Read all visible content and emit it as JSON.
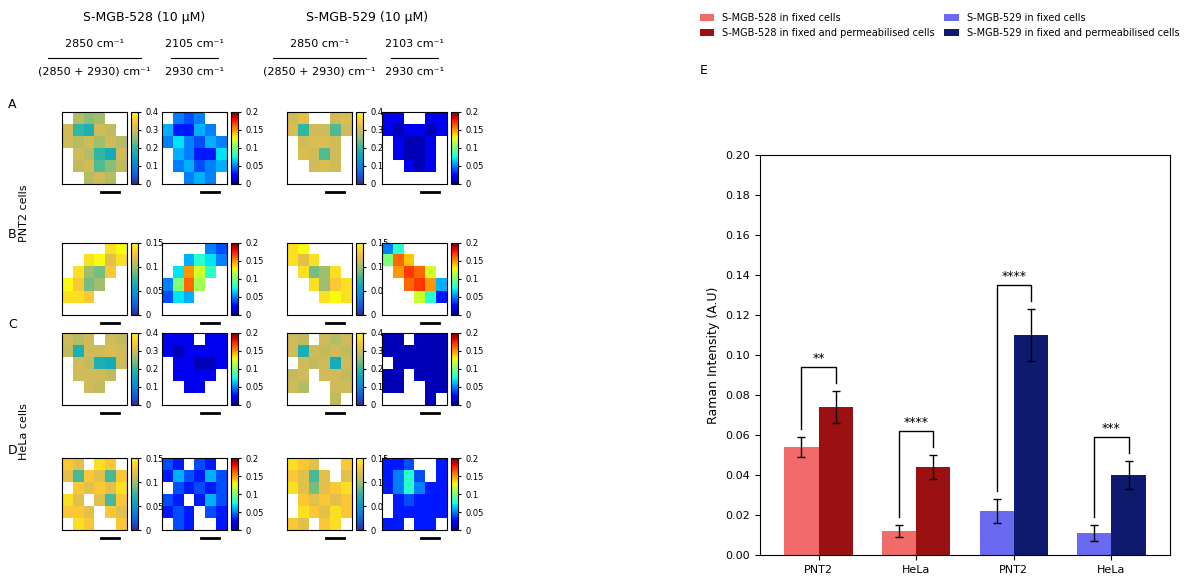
{
  "figure": {
    "compound_headers": [
      "S-MGB-528 (10 μM)",
      "S-MGB-529 (10 μM)"
    ],
    "ratio_labels": [
      {
        "numerator": "2850 cm⁻¹",
        "denominator": "(2850 + 2930) cm⁻¹"
      },
      {
        "numerator": "2105 cm⁻¹",
        "denominator": "2930 cm⁻¹"
      },
      {
        "numerator": "2850 cm⁻¹",
        "denominator": "(2850 + 2930) cm⁻¹"
      },
      {
        "numerator": "2103 cm⁻¹",
        "denominator": "2930 cm⁻¹"
      }
    ],
    "panel_letters": [
      "A",
      "B",
      "C",
      "D",
      "E"
    ],
    "cell_lines": [
      "PNT2 cells",
      "HeLa cells"
    ]
  },
  "chart_data": [
    {
      "type": "heatmap",
      "tick_labels": false,
      "colorbar_range": [
        0,
        0.4
      ],
      "colorbar_ticks": [
        0,
        0.1,
        0.2,
        0.3,
        0.4
      ],
      "cells": [
        [
          null,
          0.28,
          0.25,
          0.27,
          null,
          null
        ],
        [
          0.3,
          0.2,
          0.18,
          0.3,
          0.29,
          null
        ],
        [
          0.3,
          0.28,
          0.3,
          0.27,
          0.3,
          0.28
        ],
        [
          null,
          0.3,
          0.28,
          0.2,
          0.17,
          0.3
        ],
        [
          null,
          0.29,
          0.3,
          0.22,
          0.25,
          0.29
        ],
        [
          null,
          null,
          0.28,
          0.3,
          0.28,
          null
        ]
      ]
    },
    {
      "type": "heatmap",
      "tick_labels": false,
      "colorbar_range": [
        0,
        0.2
      ],
      "colorbar_ticks": [
        0,
        0.05,
        0.1,
        0.15,
        0.2
      ],
      "cells": [
        [
          null,
          0.05,
          0.04,
          0.05,
          null,
          null
        ],
        [
          0.06,
          0.03,
          0.03,
          0.06,
          0.05,
          null
        ],
        [
          0.05,
          0.07,
          0.05,
          0.04,
          0.06,
          0.05
        ],
        [
          null,
          0.06,
          0.05,
          0.03,
          0.03,
          0.07
        ],
        [
          null,
          0.05,
          0.06,
          0.04,
          0.05,
          0.06
        ],
        [
          null,
          null,
          0.05,
          0.06,
          0.05,
          null
        ]
      ]
    },
    {
      "type": "heatmap",
      "tick_labels": false,
      "colorbar_range": [
        0,
        0.4
      ],
      "colorbar_ticks": [
        0,
        0.1,
        0.2,
        0.3,
        0.4
      ],
      "cells": [
        [
          0.3,
          0.32,
          null,
          null,
          0.3,
          0.31
        ],
        [
          0.31,
          0.2,
          0.3,
          0.3,
          0.22,
          0.3
        ],
        [
          null,
          0.3,
          0.31,
          0.31,
          0.3,
          null
        ],
        [
          null,
          0.31,
          0.3,
          0.22,
          0.3,
          null
        ],
        [
          null,
          null,
          0.3,
          0.31,
          0.3,
          null
        ],
        [
          null,
          null,
          null,
          null,
          null,
          null
        ]
      ]
    },
    {
      "type": "heatmap",
      "tick_labels": false,
      "colorbar_range": [
        0,
        0.2
      ],
      "colorbar_ticks": [
        0,
        0.05,
        0.1,
        0.15,
        0.2
      ],
      "cells": [
        [
          0.02,
          0.02,
          null,
          null,
          0.02,
          0.02
        ],
        [
          0.02,
          0.01,
          0.02,
          0.02,
          0.01,
          0.02
        ],
        [
          null,
          0.02,
          0.01,
          0.01,
          0.02,
          null
        ],
        [
          null,
          0.02,
          0.01,
          0.01,
          0.02,
          null
        ],
        [
          null,
          null,
          0.02,
          0.01,
          0.02,
          null
        ],
        [
          null,
          null,
          null,
          null,
          null,
          null
        ]
      ]
    },
    {
      "type": "heatmap",
      "tick_labels": false,
      "colorbar_range": [
        0,
        0.15
      ],
      "colorbar_ticks": [
        0,
        0.05,
        0.1,
        0.15
      ],
      "cells": [
        [
          null,
          null,
          null,
          null,
          0.14,
          0.15
        ],
        [
          null,
          null,
          0.14,
          0.15,
          0.12,
          0.14
        ],
        [
          null,
          0.14,
          0.1,
          0.09,
          0.13,
          null
        ],
        [
          0.15,
          0.13,
          0.09,
          0.1,
          null,
          null
        ],
        [
          0.14,
          0.14,
          0.13,
          null,
          null,
          null
        ],
        [
          null,
          null,
          null,
          null,
          null,
          null
        ]
      ]
    },
    {
      "type": "heatmap",
      "tick_labels": false,
      "colorbar_range": [
        0,
        0.2
      ],
      "colorbar_ticks": [
        0,
        0.05,
        0.1,
        0.15,
        0.2
      ],
      "cells": [
        [
          null,
          null,
          null,
          null,
          0.05,
          0.04
        ],
        [
          null,
          null,
          0.06,
          0.08,
          0.07,
          0.05
        ],
        [
          null,
          0.07,
          0.15,
          0.12,
          0.08,
          null
        ],
        [
          0.05,
          0.1,
          0.16,
          0.11,
          null,
          null
        ],
        [
          0.04,
          0.07,
          0.06,
          null,
          null,
          null
        ],
        [
          null,
          null,
          null,
          null,
          null,
          null
        ]
      ]
    },
    {
      "type": "heatmap",
      "tick_labels": false,
      "colorbar_range": [
        0,
        0.15
      ],
      "colorbar_ticks": [
        0,
        0.05,
        0.1,
        0.15
      ],
      "cells": [
        [
          0.14,
          0.15,
          null,
          null,
          null,
          null
        ],
        [
          0.14,
          0.12,
          0.14,
          null,
          null,
          null
        ],
        [
          null,
          0.14,
          0.09,
          0.1,
          0.14,
          null
        ],
        [
          null,
          null,
          0.14,
          0.1,
          0.13,
          0.14
        ],
        [
          null,
          null,
          null,
          0.14,
          0.15,
          0.14
        ],
        [
          null,
          null,
          null,
          null,
          null,
          null
        ]
      ]
    },
    {
      "type": "heatmap",
      "tick_labels": false,
      "colorbar_range": [
        0,
        0.2
      ],
      "colorbar_ticks": [
        0,
        0.05,
        0.1,
        0.15,
        0.2
      ],
      "cells": [
        [
          0.05,
          0.08,
          null,
          null,
          null,
          null
        ],
        [
          0.1,
          0.16,
          0.14,
          null,
          null,
          null
        ],
        [
          null,
          0.15,
          0.17,
          0.16,
          0.12,
          null
        ],
        [
          null,
          null,
          0.16,
          0.17,
          0.15,
          0.06
        ],
        [
          null,
          null,
          null,
          0.12,
          0.08,
          0.03
        ],
        [
          null,
          null,
          null,
          null,
          null,
          null
        ]
      ]
    },
    {
      "type": "heatmap",
      "tick_labels": false,
      "colorbar_range": [
        0,
        0.4
      ],
      "colorbar_ticks": [
        0,
        0.1,
        0.2,
        0.3,
        0.4
      ],
      "cells": [
        [
          0.3,
          0.28,
          0.3,
          null,
          0.3,
          0.29
        ],
        [
          0.29,
          0.18,
          0.3,
          0.3,
          0.31,
          0.3
        ],
        [
          null,
          0.3,
          0.29,
          0.18,
          0.17,
          0.3
        ],
        [
          null,
          0.3,
          0.3,
          0.3,
          0.29,
          null
        ],
        [
          null,
          null,
          0.3,
          0.29,
          null,
          null
        ],
        [
          null,
          null,
          null,
          null,
          null,
          null
        ]
      ]
    },
    {
      "type": "heatmap",
      "tick_labels": false,
      "colorbar_range": [
        0,
        0.2
      ],
      "colorbar_ticks": [
        0,
        0.05,
        0.1,
        0.15,
        0.2
      ],
      "cells": [
        [
          0.02,
          0.02,
          0.02,
          null,
          0.02,
          0.02
        ],
        [
          0.02,
          0.01,
          0.02,
          0.02,
          0.02,
          0.02
        ],
        [
          null,
          0.02,
          0.02,
          0.01,
          0.01,
          0.02
        ],
        [
          null,
          0.02,
          0.02,
          0.02,
          0.02,
          null
        ],
        [
          null,
          null,
          0.02,
          0.02,
          null,
          null
        ],
        [
          null,
          null,
          null,
          null,
          null,
          null
        ]
      ]
    },
    {
      "type": "heatmap",
      "tick_labels": false,
      "colorbar_range": [
        0,
        0.4
      ],
      "colorbar_ticks": [
        0,
        0.1,
        0.2,
        0.3,
        0.4
      ],
      "cells": [
        [
          0.3,
          0.29,
          null,
          0.3,
          0.28,
          0.3
        ],
        [
          0.3,
          0.18,
          0.3,
          0.29,
          0.3,
          0.29
        ],
        [
          null,
          0.3,
          0.29,
          0.3,
          0.17,
          0.3
        ],
        [
          0.29,
          0.3,
          null,
          0.3,
          0.3,
          0.29
        ],
        [
          0.3,
          0.28,
          null,
          null,
          0.3,
          0.3
        ],
        [
          null,
          null,
          null,
          null,
          0.29,
          null
        ]
      ]
    },
    {
      "type": "heatmap",
      "tick_labels": false,
      "colorbar_range": [
        0,
        0.2
      ],
      "colorbar_ticks": [
        0,
        0.05,
        0.1,
        0.15,
        0.2
      ],
      "cells": [
        [
          0.01,
          0.01,
          null,
          0.01,
          0.01,
          0.01
        ],
        [
          0.01,
          0.01,
          0.01,
          0.01,
          0.01,
          0.01
        ],
        [
          null,
          0.01,
          0.01,
          0.01,
          0.01,
          0.01
        ],
        [
          0.01,
          0.01,
          null,
          0.01,
          0.01,
          0.01
        ],
        [
          0.01,
          0.01,
          null,
          null,
          0.01,
          0.01
        ],
        [
          null,
          null,
          null,
          null,
          0.01,
          null
        ]
      ]
    },
    {
      "type": "heatmap",
      "tick_labels": false,
      "colorbar_range": [
        0,
        0.15
      ],
      "colorbar_ticks": [
        0,
        0.05,
        0.1,
        0.15
      ],
      "cells": [
        [
          0.13,
          0.12,
          null,
          0.14,
          0.13,
          null
        ],
        [
          0.12,
          0.08,
          0.13,
          0.12,
          0.08,
          0.13
        ],
        [
          null,
          0.13,
          0.12,
          0.13,
          0.12,
          0.14
        ],
        [
          0.14,
          0.12,
          null,
          0.12,
          0.08,
          0.13
        ],
        [
          0.13,
          0.13,
          0.12,
          null,
          0.13,
          0.12
        ],
        [
          null,
          0.14,
          0.13,
          null,
          null,
          0.13
        ]
      ]
    },
    {
      "type": "heatmap",
      "tick_labels": false,
      "colorbar_range": [
        0,
        0.2
      ],
      "colorbar_ticks": [
        0,
        0.05,
        0.1,
        0.15,
        0.2
      ],
      "cells": [
        [
          0.04,
          0.03,
          null,
          0.04,
          0.03,
          null
        ],
        [
          0.03,
          0.06,
          0.04,
          0.03,
          0.06,
          0.04
        ],
        [
          null,
          0.04,
          0.03,
          0.04,
          0.03,
          0.04
        ],
        [
          0.04,
          0.03,
          null,
          0.03,
          0.06,
          0.04
        ],
        [
          0.03,
          0.04,
          0.03,
          null,
          0.04,
          0.03
        ],
        [
          null,
          0.04,
          0.03,
          null,
          null,
          0.03
        ]
      ]
    },
    {
      "type": "heatmap",
      "tick_labels": false,
      "colorbar_range": [
        0,
        0.15
      ],
      "colorbar_ticks": [
        0,
        0.05,
        0.1,
        0.15
      ],
      "cells": [
        [
          0.14,
          0.13,
          0.12,
          null,
          null,
          0.13
        ],
        [
          0.13,
          0.12,
          0.08,
          0.12,
          null,
          0.12
        ],
        [
          0.14,
          0.12,
          0.09,
          0.12,
          0.13,
          0.14
        ],
        [
          null,
          0.13,
          0.12,
          0.13,
          0.12,
          0.13
        ],
        [
          null,
          0.14,
          0.13,
          0.12,
          0.14,
          0.13
        ],
        [
          0.13,
          0.12,
          null,
          0.13,
          0.14,
          null
        ]
      ]
    },
    {
      "type": "heatmap",
      "tick_labels": false,
      "colorbar_range": [
        0,
        0.2
      ],
      "colorbar_ticks": [
        0,
        0.05,
        0.1,
        0.15,
        0.2
      ],
      "cells": [
        [
          0.03,
          0.03,
          0.04,
          null,
          null,
          0.03
        ],
        [
          0.03,
          0.05,
          0.08,
          0.04,
          null,
          0.03
        ],
        [
          0.03,
          0.05,
          0.08,
          0.05,
          0.03,
          0.03
        ],
        [
          null,
          0.03,
          0.04,
          0.03,
          0.03,
          0.03
        ],
        [
          null,
          0.03,
          0.03,
          0.03,
          0.03,
          0.03
        ],
        [
          0.03,
          0.03,
          null,
          0.03,
          0.03,
          null
        ]
      ]
    },
    {
      "type": "bar",
      "ylabel": "Raman Intensity (A.U)",
      "categories": [
        "PNT2",
        "HeLa",
        "PNT2",
        "HeLa"
      ],
      "series": [
        {
          "name": "S-MGB-528 in fixed cells",
          "color": "#f26b6b",
          "values": [
            0.054,
            0.012,
            null,
            null
          ],
          "errors": [
            0.005,
            0.003,
            null,
            null
          ]
        },
        {
          "name": "S-MGB-528 in fixed and permeabilised cells",
          "color": "#9b1111",
          "values": [
            0.074,
            0.044,
            null,
            null
          ],
          "errors": [
            0.008,
            0.006,
            null,
            null
          ]
        },
        {
          "name": "S-MGB-529 in fixed cells",
          "color": "#6a6af0",
          "values": [
            null,
            null,
            0.022,
            0.011
          ],
          "errors": [
            null,
            null,
            0.006,
            0.004
          ]
        },
        {
          "name": "S-MGB-529 in fixed and permeabilised cells",
          "color": "#0d1a6e",
          "values": [
            null,
            null,
            0.11,
            0.04
          ],
          "errors": [
            null,
            null,
            0.013,
            0.007
          ]
        }
      ],
      "significance": [
        "**",
        "****",
        "****",
        "***"
      ],
      "ylim": [
        0,
        0.2
      ],
      "yticks": [
        {
          "value": 0.0,
          "label": "0.00"
        },
        {
          "value": 0.02,
          "label": "0.02"
        },
        {
          "value": 0.04,
          "label": "0.04"
        },
        {
          "value": 0.06,
          "label": "0.06"
        },
        {
          "value": 0.08,
          "label": "0.08"
        },
        {
          "value": 0.1,
          "label": "0.10"
        },
        {
          "value": 0.12,
          "label": "0.12"
        },
        {
          "value": 0.14,
          "label": "0.14"
        },
        {
          "value": 0.16,
          "label": "0.16"
        },
        {
          "value": 0.18,
          "label": "0.18"
        },
        {
          "value": 0.2,
          "label": "0.20"
        }
      ],
      "legend": "upper right"
    }
  ]
}
